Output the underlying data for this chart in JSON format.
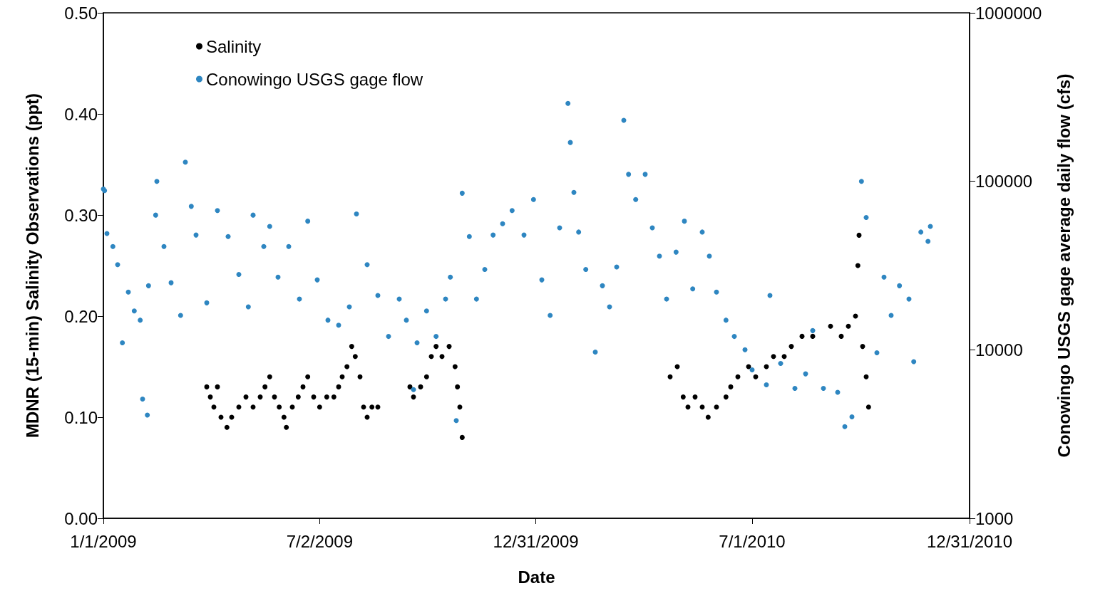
{
  "chart_data": {
    "type": "scatter",
    "xlabel": "Date",
    "ylabel": "MDNR (15-min) Salinity Observations (ppt)",
    "y2label": "Conowingo USGS gage average daily flow (cfs)",
    "xlim": [
      "2009-01-01",
      "2010-12-31"
    ],
    "xticks": [
      {
        "value": "2009-01-01",
        "label": "1/1/2009"
      },
      {
        "value": "2009-07-02",
        "label": "7/2/2009"
      },
      {
        "value": "2009-12-31",
        "label": "12/31/2009"
      },
      {
        "value": "2010-07-01",
        "label": "7/1/2010"
      },
      {
        "value": "2010-12-31",
        "label": "12/31/2010"
      }
    ],
    "ylim": [
      0,
      0.5
    ],
    "yticks": [
      {
        "value": 0,
        "label": "0.00"
      },
      {
        "value": 0.1,
        "label": "0.10"
      },
      {
        "value": 0.2,
        "label": "0.20"
      },
      {
        "value": 0.3,
        "label": "0.30"
      },
      {
        "value": 0.4,
        "label": "0.40"
      },
      {
        "value": 0.5,
        "label": "0.50"
      }
    ],
    "y2lim": [
      1000,
      1000000
    ],
    "y2ticks": [
      1000,
      10000,
      100000,
      1000000
    ],
    "log": "y2",
    "grid": false,
    "legend": "top left",
    "marker": "circle",
    "series": [
      {
        "name": "Salinity",
        "color": "#000000",
        "x": [
          "2009-03-29",
          "2009-04-01",
          "2009-04-04",
          "2009-04-07",
          "2009-04-10",
          "2009-04-15",
          "2009-04-19",
          "2009-04-25",
          "2009-05-01",
          "2009-05-07",
          "2009-05-13",
          "2009-05-17",
          "2009-05-21",
          "2009-05-25",
          "2009-05-29",
          "2009-06-02",
          "2009-06-04",
          "2009-06-09",
          "2009-06-14",
          "2009-06-18",
          "2009-06-22",
          "2009-06-27",
          "2009-07-02",
          "2009-07-08",
          "2009-07-14",
          "2009-07-18",
          "2009-07-21",
          "2009-07-25",
          "2009-07-29",
          "2009-08-01",
          "2009-08-05",
          "2009-08-08",
          "2009-08-11",
          "2009-08-15",
          "2009-08-20",
          "2009-09-16",
          "2009-09-19",
          "2009-09-25",
          "2009-09-30",
          "2009-10-04",
          "2009-10-08",
          "2009-10-13",
          "2009-10-19",
          "2009-10-24",
          "2009-10-26",
          "2009-10-28",
          "2009-10-30",
          "2010-04-23",
          "2010-04-29",
          "2010-05-04",
          "2010-05-08",
          "2010-05-14",
          "2010-05-20",
          "2010-05-25",
          "2010-06-01",
          "2010-06-09",
          "2010-06-13",
          "2010-06-19",
          "2010-06-28",
          "2010-07-04",
          "2010-07-13",
          "2010-07-19",
          "2010-07-28",
          "2010-08-03",
          "2010-08-12",
          "2010-08-21",
          "2010-09-05",
          "2010-09-14",
          "2010-09-20",
          "2010-09-26",
          "2010-09-28",
          "2010-09-29",
          "2010-10-02",
          "2010-10-05",
          "2010-10-07"
        ],
        "values": [
          0.13,
          0.12,
          0.11,
          0.13,
          0.1,
          0.09,
          0.1,
          0.11,
          0.12,
          0.11,
          0.12,
          0.13,
          0.14,
          0.12,
          0.11,
          0.1,
          0.09,
          0.11,
          0.12,
          0.13,
          0.14,
          0.12,
          0.11,
          0.12,
          0.12,
          0.13,
          0.14,
          0.15,
          0.17,
          0.16,
          0.14,
          0.11,
          0.1,
          0.11,
          0.11,
          0.13,
          0.12,
          0.13,
          0.14,
          0.16,
          0.17,
          0.16,
          0.17,
          0.15,
          0.13,
          0.11,
          0.08,
          0.14,
          0.15,
          0.12,
          0.11,
          0.12,
          0.11,
          0.1,
          0.11,
          0.12,
          0.13,
          0.14,
          0.15,
          0.14,
          0.15,
          0.16,
          0.16,
          0.17,
          0.18,
          0.18,
          0.19,
          0.18,
          0.19,
          0.2,
          0.25,
          0.28,
          0.17,
          0.14,
          0.11
        ]
      },
      {
        "name": "Conowingo USGS gage flow",
        "color": "#2e86c1",
        "axis": "y2",
        "x": [
          "2009-01-01",
          "2009-01-02",
          "2009-01-04",
          "2009-01-09",
          "2009-01-13",
          "2009-01-17",
          "2009-01-22",
          "2009-01-27",
          "2009-02-01",
          "2009-02-03",
          "2009-02-07",
          "2009-02-08",
          "2009-02-14",
          "2009-02-15",
          "2009-02-21",
          "2009-02-27",
          "2009-03-07",
          "2009-03-11",
          "2009-03-16",
          "2009-03-20",
          "2009-03-29",
          "2009-04-07",
          "2009-04-16",
          "2009-04-25",
          "2009-05-03",
          "2009-05-07",
          "2009-05-16",
          "2009-05-21",
          "2009-05-28",
          "2009-06-06",
          "2009-06-15",
          "2009-06-22",
          "2009-06-30",
          "2009-07-09",
          "2009-07-18",
          "2009-07-27",
          "2009-08-02",
          "2009-08-11",
          "2009-08-20",
          "2009-08-29",
          "2009-09-07",
          "2009-09-13",
          "2009-09-19",
          "2009-09-22",
          "2009-09-30",
          "2009-10-08",
          "2009-10-16",
          "2009-10-20",
          "2009-10-25",
          "2009-10-30",
          "2009-11-05",
          "2009-11-11",
          "2009-11-18",
          "2009-11-25",
          "2009-12-03",
          "2009-12-11",
          "2009-12-21",
          "2009-12-29",
          "2010-01-05",
          "2010-01-12",
          "2010-01-20",
          "2010-01-27",
          "2010-01-29",
          "2010-02-01",
          "2010-02-05",
          "2010-02-11",
          "2010-02-19",
          "2010-02-25",
          "2010-03-03",
          "2010-03-09",
          "2010-03-15",
          "2010-03-19",
          "2010-03-25",
          "2010-04-02",
          "2010-04-08",
          "2010-04-14",
          "2010-04-20",
          "2010-04-28",
          "2010-05-05",
          "2010-05-12",
          "2010-05-20",
          "2010-05-26",
          "2010-06-01",
          "2010-06-09",
          "2010-06-16",
          "2010-06-25",
          "2010-07-01",
          "2010-07-13",
          "2010-07-16",
          "2010-07-25",
          "2010-08-06",
          "2010-08-15",
          "2010-08-21",
          "2010-08-30",
          "2010-09-11",
          "2010-09-17",
          "2010-09-23",
          "2010-10-01",
          "2010-10-05",
          "2010-10-14",
          "2010-10-20",
          "2010-10-26",
          "2010-11-02",
          "2010-11-10",
          "2010-11-14",
          "2010-11-20",
          "2010-11-26",
          "2010-11-28"
        ],
        "values": [
          90000,
          88000,
          49000,
          41000,
          32000,
          11000,
          22000,
          17000,
          15000,
          5100,
          4100,
          24000,
          63000,
          100000,
          41000,
          25000,
          16000,
          130000,
          71000,
          48000,
          19000,
          67000,
          47000,
          28000,
          18000,
          63000,
          41000,
          54000,
          27000,
          41000,
          20000,
          58000,
          26000,
          15000,
          14000,
          18000,
          64000,
          32000,
          21000,
          12000,
          20000,
          15000,
          5800,
          11000,
          17000,
          12000,
          20000,
          27000,
          3800,
          85000,
          47000,
          20000,
          30000,
          48000,
          56000,
          67000,
          48000,
          78000,
          26000,
          16000,
          53000,
          290000,
          170000,
          86000,
          50000,
          30000,
          9700,
          24000,
          18000,
          31000,
          230000,
          110000,
          78000,
          110000,
          53000,
          36000,
          20000,
          38000,
          58000,
          23000,
          50000,
          36000,
          22000,
          15000,
          12000,
          10000,
          7600,
          6200,
          21000,
          8300,
          5900,
          7200,
          13000,
          5900,
          5600,
          3500,
          4000,
          100000,
          61000,
          9600,
          27000,
          16000,
          24000,
          20000,
          8500,
          50000,
          44000,
          54000
        ]
      }
    ]
  }
}
